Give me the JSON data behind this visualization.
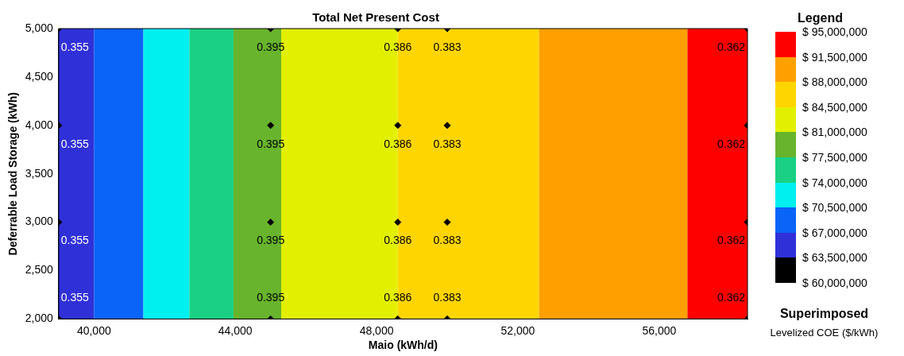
{
  "chart_data": {
    "type": "scatter",
    "title": "Total Net Present Cost",
    "xlabel": "Maio (kWh/d)",
    "ylabel": "Deferrable Load Storage (kWh)",
    "series": [
      {
        "color": "#000000",
        "x": [
          39000,
          39000,
          39000,
          39000,
          45000,
          45000,
          45000,
          45000,
          48600,
          48600,
          48600,
          48600,
          50000,
          50000,
          50000,
          50000,
          58500,
          58500,
          58500,
          58500
        ],
        "values": [
          5000,
          4000,
          3000,
          2000,
          5000,
          4000,
          3000,
          2000,
          5000,
          4000,
          3000,
          2000,
          5000,
          4000,
          3000,
          2000,
          5000,
          4000,
          3000,
          2000
        ]
      }
    ],
    "marker": "diamond",
    "grid": false,
    "legend": false,
    "xlim": [
      39000,
      58500
    ],
    "xticks": [
      {
        "value": 40000,
        "label": "40,000"
      },
      {
        "value": 44000,
        "label": "44,000"
      },
      {
        "value": 48000,
        "label": "48,000"
      },
      {
        "value": 52000,
        "label": "52,000"
      },
      {
        "value": 56000,
        "label": "56,000"
      }
    ],
    "ylim": [
      2000,
      5000
    ],
    "yticks": [
      {
        "value": 2000,
        "label": "2,000"
      },
      {
        "value": 2500,
        "label": "2,500"
      },
      {
        "value": 3000,
        "label": "3,000"
      },
      {
        "value": 3500,
        "label": "3,500"
      },
      {
        "value": 4000,
        "label": "4,000"
      },
      {
        "value": 4500,
        "label": "4,500"
      },
      {
        "value": 5000,
        "label": "5,000"
      }
    ],
    "bands": [
      {
        "axis": "x",
        "from": 39000,
        "to": 40000,
        "color": "#3030d8"
      },
      {
        "axis": "x",
        "from": 40000,
        "to": 41400,
        "color": "#0a64f8"
      },
      {
        "axis": "x",
        "from": 41400,
        "to": 42700,
        "color": "#00f0f0"
      },
      {
        "axis": "x",
        "from": 42700,
        "to": 43950,
        "color": "#1ad084"
      },
      {
        "axis": "x",
        "from": 43950,
        "to": 45300,
        "color": "#68b42c"
      },
      {
        "axis": "x",
        "from": 45300,
        "to": 48600,
        "color": "#e2f000"
      },
      {
        "axis": "x",
        "from": 48600,
        "to": 52600,
        "color": "#ffd500"
      },
      {
        "axis": "x",
        "from": 52600,
        "to": 56800,
        "color": "#ffa000"
      },
      {
        "axis": "x",
        "from": 56800,
        "to": 58500,
        "color": "#ff0000"
      }
    ],
    "clabel": "Legend",
    "clim": [
      60000000,
      95000000
    ],
    "cticks": [
      {
        "value": 95000000,
        "label": "$ 95,000,000"
      },
      {
        "value": 91500000,
        "label": "$ 91,500,000"
      },
      {
        "value": 88000000,
        "label": "$ 88,000,000"
      },
      {
        "value": 84500000,
        "label": "$ 84,500,000"
      },
      {
        "value": 81000000,
        "label": "$ 81,000,000"
      },
      {
        "value": 77500000,
        "label": "$ 77,500,000"
      },
      {
        "value": 74000000,
        "label": "$ 74,000,000"
      },
      {
        "value": 70500000,
        "label": "$ 70,500,000"
      },
      {
        "value": 67000000,
        "label": "$ 67,000,000"
      },
      {
        "value": 63500000,
        "label": "$ 63,500,000"
      },
      {
        "value": 60000000,
        "label": "$ 60,000,000"
      }
    ],
    "colors": [
      "#ff0000",
      "#ffa000",
      "#ffd500",
      "#e2f000",
      "#68b42c",
      "#1ad084",
      "#00f0f0",
      "#0a64f8",
      "#3030d8",
      "#000000"
    ],
    "annotations": [
      {
        "text": "0.355",
        "x": 39000,
        "y": 5000
      },
      {
        "text": "0.355",
        "x": 39000,
        "y": 4000
      },
      {
        "text": "0.355",
        "x": 39000,
        "y": 3000
      },
      {
        "text": "0.355",
        "x": 39000,
        "y": 2000
      },
      {
        "text": "0.395",
        "x": 45000,
        "y": 5000
      },
      {
        "text": "0.395",
        "x": 45000,
        "y": 4000
      },
      {
        "text": "0.395",
        "x": 45000,
        "y": 3000
      },
      {
        "text": "0.395",
        "x": 45000,
        "y": 2000
      },
      {
        "text": "0.386",
        "x": 48600,
        "y": 5000
      },
      {
        "text": "0.386",
        "x": 48600,
        "y": 4000
      },
      {
        "text": "0.386",
        "x": 48600,
        "y": 3000
      },
      {
        "text": "0.386",
        "x": 48600,
        "y": 2000
      },
      {
        "text": "0.383",
        "x": 50000,
        "y": 5000
      },
      {
        "text": "0.383",
        "x": 50000,
        "y": 4000
      },
      {
        "text": "0.383",
        "x": 50000,
        "y": 3000
      },
      {
        "text": "0.383",
        "x": 50000,
        "y": 2000
      },
      {
        "text": "0.362",
        "x": 58500,
        "y": 5000
      },
      {
        "text": "0.362",
        "x": 58500,
        "y": 4000
      },
      {
        "text": "0.362",
        "x": 58500,
        "y": 3000
      },
      {
        "text": "0.362",
        "x": 58500,
        "y": 2000
      },
      "Superimposed",
      "Levelized COE ($/kWh)"
    ]
  }
}
